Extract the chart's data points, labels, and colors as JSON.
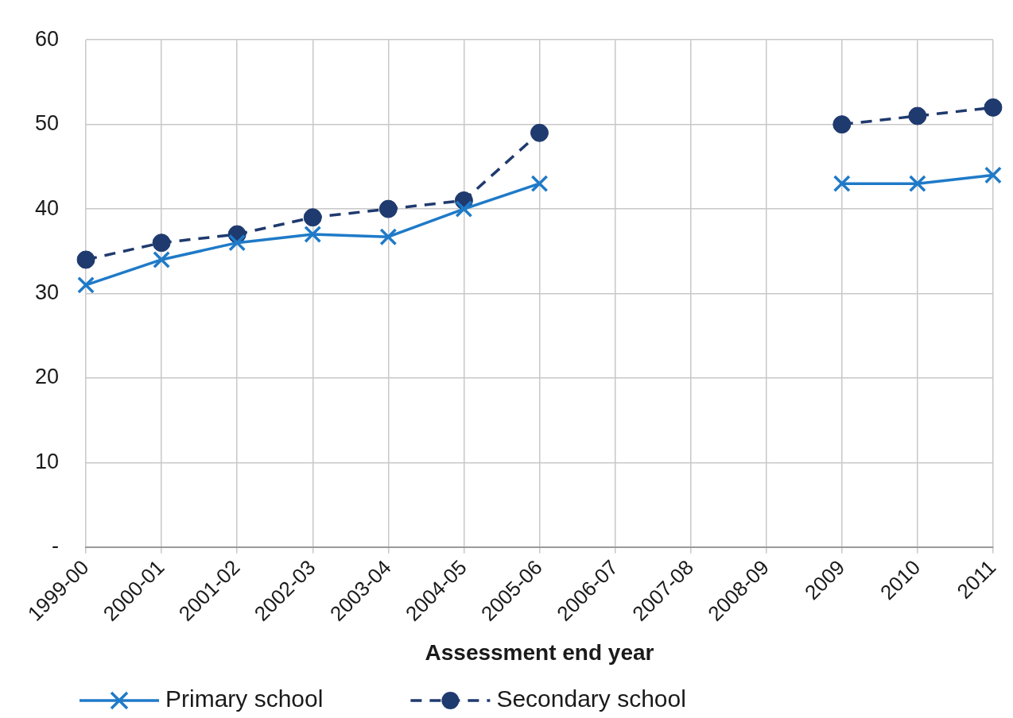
{
  "chart_data": {
    "type": "line",
    "xlabel": "Assessment end year",
    "categories": [
      "1999-00",
      "2000-01",
      "2001-02",
      "2002-03",
      "2003-04",
      "2004-05",
      "2005-06",
      "2006-07",
      "2007-08",
      "2008-09",
      "2009",
      "2010",
      "2011"
    ],
    "series": [
      {
        "name": "Primary school",
        "color": "#1f7ac8",
        "marker": "cross",
        "line_style": "solid",
        "values": [
          31,
          34,
          36,
          37,
          36.7,
          40,
          43,
          null,
          null,
          null,
          43,
          43,
          44
        ]
      },
      {
        "name": "Secondary school",
        "color": "#1f3a6e",
        "marker": "circle",
        "line_style": "dashed",
        "values": [
          34,
          36,
          37,
          39,
          40,
          41,
          49,
          null,
          null,
          null,
          50,
          51,
          52
        ]
      }
    ],
    "ylim": [
      0,
      60
    ],
    "yticks": [
      {
        "value": 0,
        "label": "-"
      },
      10,
      20,
      30,
      40,
      50,
      60
    ],
    "grid": true,
    "legend": "bottom"
  }
}
